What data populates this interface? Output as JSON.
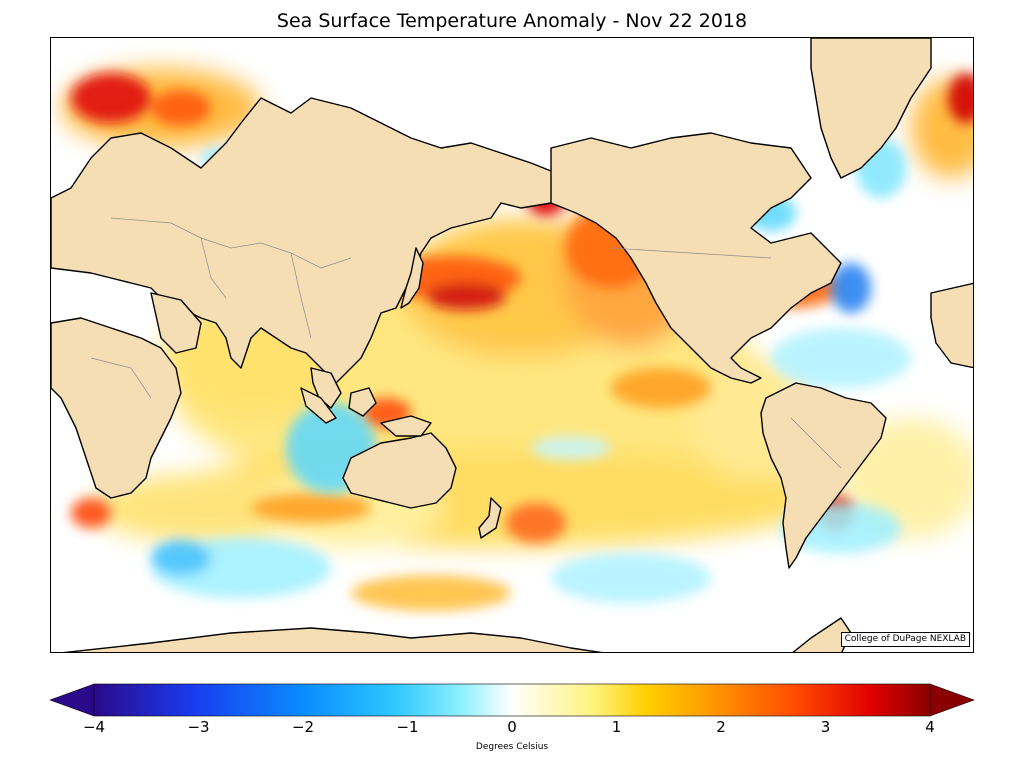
{
  "title": "Sea Surface Temperature Anomaly - Nov 22 2018",
  "credit": "College of DuPage NEXLAB",
  "colorbar": {
    "label": "Degrees Celsius",
    "ticks": [
      "−4",
      "−3",
      "−2",
      "−1",
      "0",
      "1",
      "2",
      "3",
      "4"
    ],
    "tick_values": [
      -4,
      -3,
      -2,
      -1,
      0,
      1,
      2,
      3,
      4
    ],
    "range": [
      -4,
      4
    ],
    "extend": "both",
    "colors": [
      "#2a0a8a",
      "#1a3cf0",
      "#0a8cff",
      "#2ec8ff",
      "#8ef0ff",
      "#ffffff",
      "#fff27a",
      "#ffd000",
      "#ff9000",
      "#ff4a00",
      "#e00000",
      "#8a0000"
    ]
  },
  "map": {
    "land_color": "#f5deb3",
    "coastline_color": "#000000",
    "border_color": "#8c8c8c",
    "projection": "Mercator, Pacific-centered"
  }
}
